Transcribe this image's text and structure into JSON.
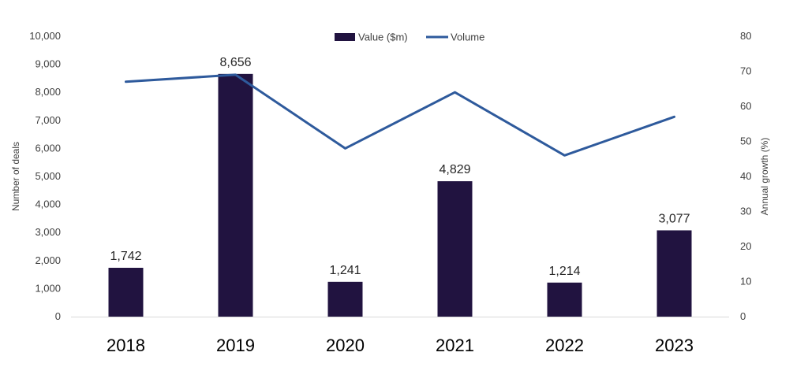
{
  "chart_data": {
    "type": "bar",
    "categories": [
      "2018",
      "2019",
      "2020",
      "2021",
      "2022",
      "2023"
    ],
    "series": [
      {
        "name": "Value ($m)",
        "type": "bar",
        "axis": "left",
        "color": "#211340",
        "values": [
          1742,
          8656,
          1241,
          4829,
          1214,
          3077
        ],
        "data_labels": [
          "1,742",
          "8,656",
          "1,241",
          "4,829",
          "1,214",
          "3,077"
        ]
      },
      {
        "name": "Volume",
        "type": "line",
        "axis": "right",
        "color": "#2E5A9C",
        "values": [
          67,
          69,
          48,
          64,
          46,
          57
        ]
      }
    ],
    "ylabel": "Number of deals",
    "y2label": "Annual growth (%)",
    "ylim": [
      0,
      10000
    ],
    "y2lim": [
      0,
      80
    ],
    "yticks": [
      "0",
      "1,000",
      "2,000",
      "3,000",
      "4,000",
      "5,000",
      "6,000",
      "7,000",
      "8,000",
      "9,000",
      "10,000"
    ],
    "y2ticks": [
      "0",
      "10",
      "20",
      "30",
      "40",
      "50",
      "60",
      "70",
      "80"
    ],
    "legend_position": "top-center",
    "grid": false
  }
}
